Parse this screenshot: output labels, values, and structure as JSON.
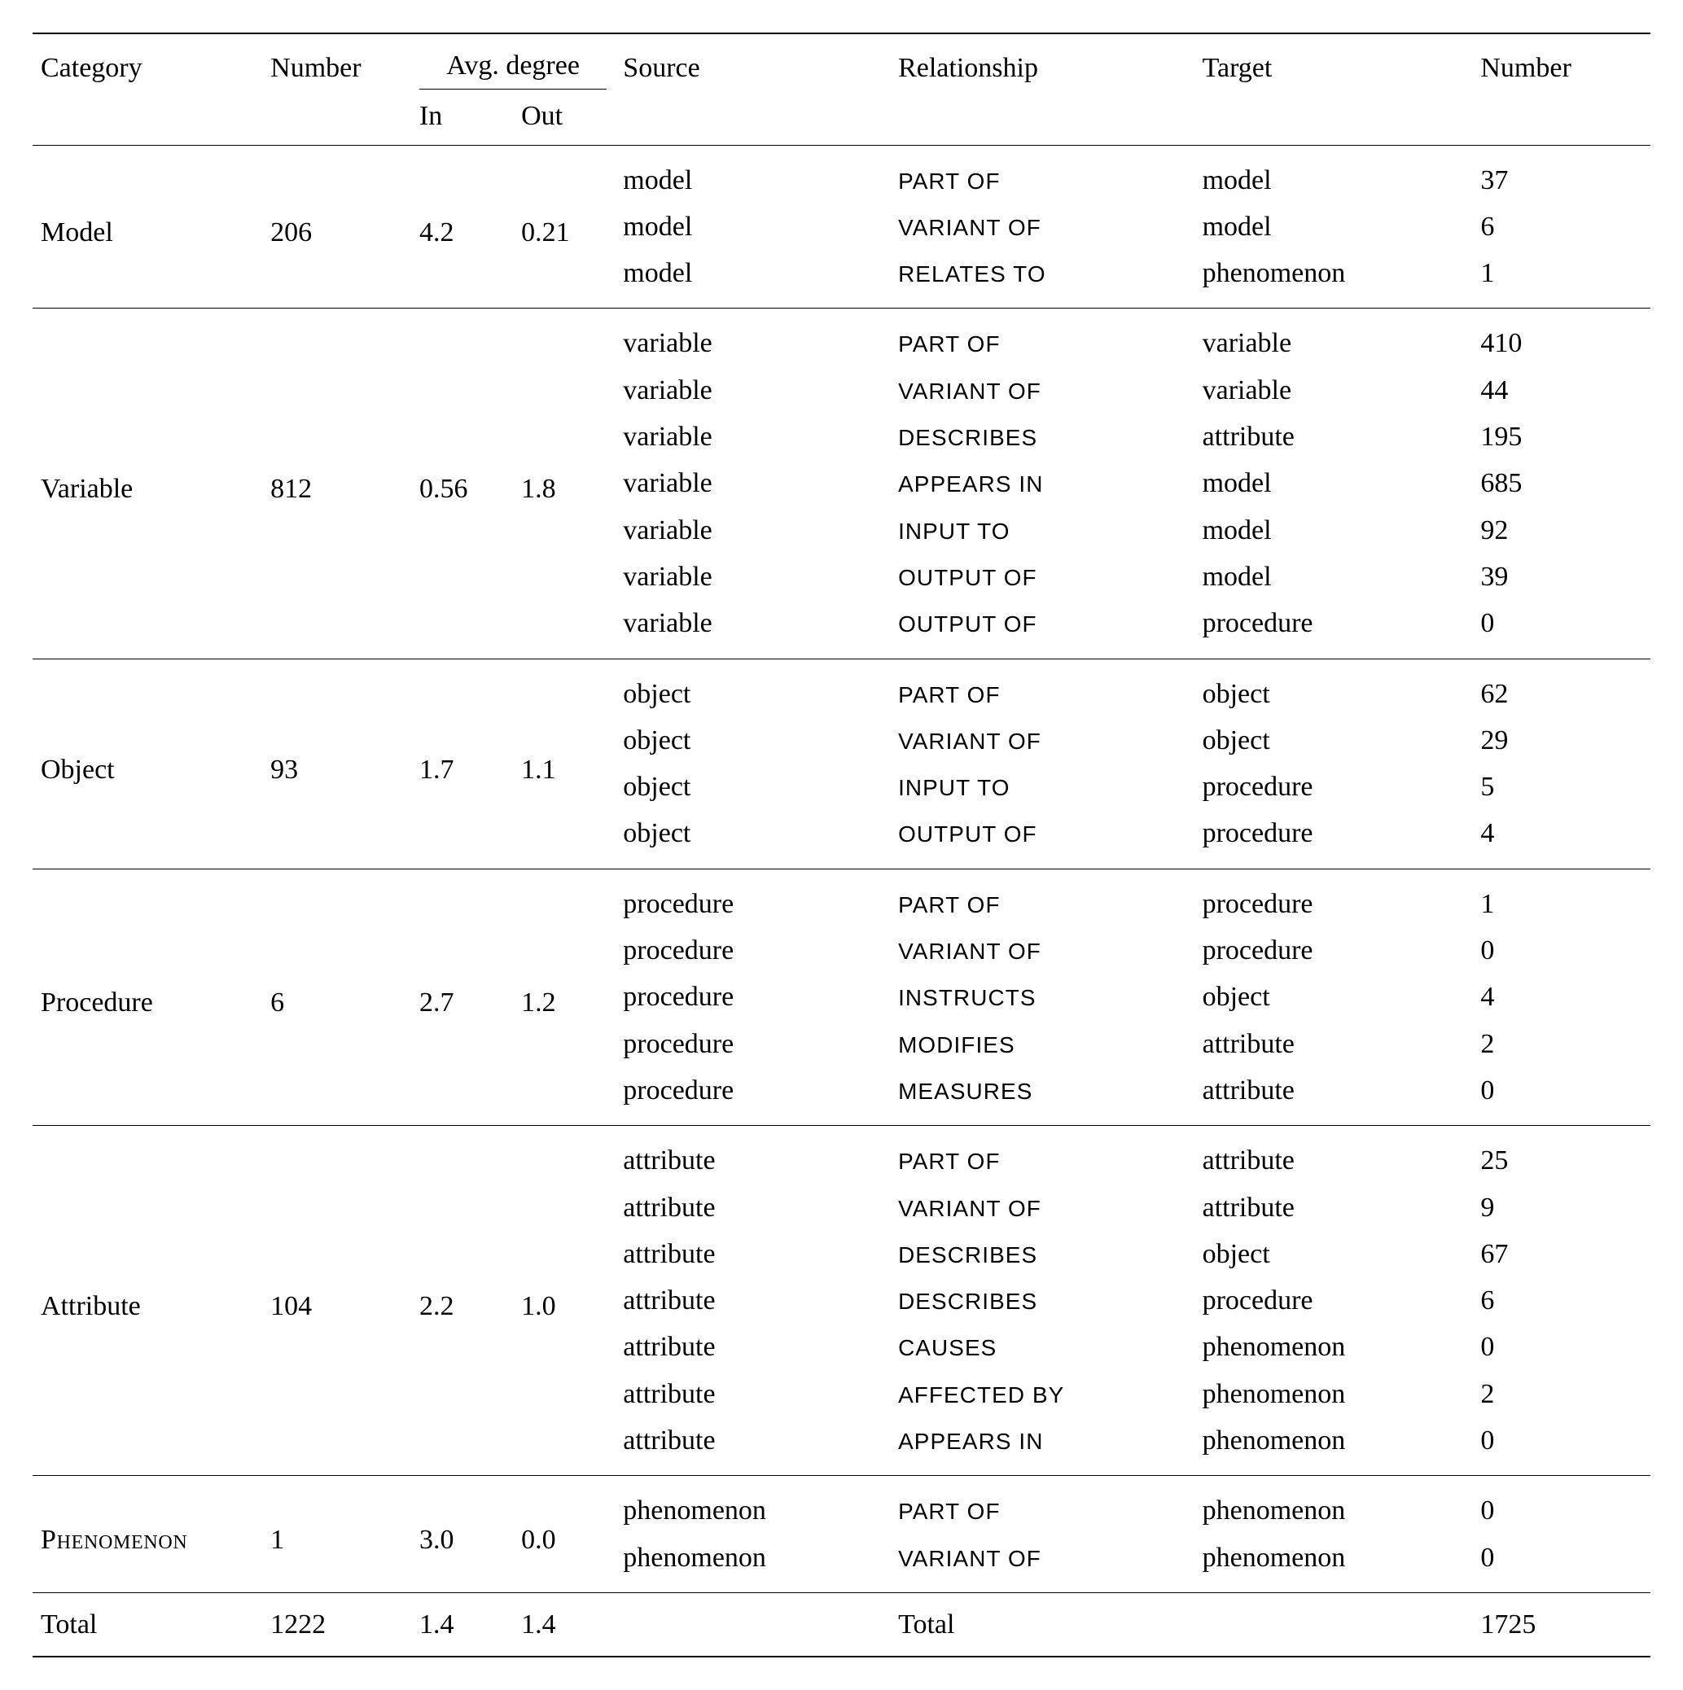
{
  "colors": {
    "text": "#000000",
    "background": "#ffffff",
    "rule": "#000000"
  },
  "typography": {
    "body_family": "Georgia serif",
    "body_size_pt": 25,
    "relationship_family": "Helvetica sans-serif",
    "relationship_size_scale": 0.82,
    "line_height": 1.45
  },
  "layout": {
    "column_widths_pct": {
      "category": 14.2,
      "number1": 9.2,
      "in": 6.3,
      "out": 6.3,
      "source": 17.0,
      "relationship": 18.8,
      "target": 17.2,
      "number2": 11.0
    }
  },
  "columns": {
    "category": "Category",
    "number": "Number",
    "avg_degree": "Avg. degree",
    "in": "In",
    "out": "Out",
    "source": "Source",
    "relationship": "Relationship",
    "target": "Target",
    "number2": "Number"
  },
  "groups": [
    {
      "category": "Model",
      "number": "206",
      "in": "4.2",
      "out": "0.21",
      "rows": [
        {
          "source": "model",
          "relationship": "PART OF",
          "target": "model",
          "number": "37"
        },
        {
          "source": "model",
          "relationship": "VARIANT OF",
          "target": "model",
          "number": "6"
        },
        {
          "source": "model",
          "relationship": "RELATES TO",
          "target": "phenomenon",
          "number": "1"
        }
      ]
    },
    {
      "category": "Variable",
      "number": "812",
      "in": "0.56",
      "out": "1.8",
      "rows": [
        {
          "source": "variable",
          "relationship": "PART OF",
          "target": "variable",
          "number": "410"
        },
        {
          "source": "variable",
          "relationship": "VARIANT OF",
          "target": "variable",
          "number": "44"
        },
        {
          "source": "variable",
          "relationship": "DESCRIBES",
          "target": "attribute",
          "number": "195"
        },
        {
          "source": "variable",
          "relationship": "APPEARS IN",
          "target": "model",
          "number": "685"
        },
        {
          "source": "variable",
          "relationship": "INPUT TO",
          "target": "model",
          "number": "92"
        },
        {
          "source": "variable",
          "relationship": "OUTPUT OF",
          "target": "model",
          "number": "39"
        },
        {
          "source": "variable",
          "relationship": "OUTPUT OF",
          "target": "procedure",
          "number": "0"
        }
      ]
    },
    {
      "category": "Object",
      "number": "93",
      "in": "1.7",
      "out": "1.1",
      "rows": [
        {
          "source": "object",
          "relationship": "PART OF",
          "target": "object",
          "number": "62"
        },
        {
          "source": "object",
          "relationship": "VARIANT OF",
          "target": "object",
          "number": "29"
        },
        {
          "source": "object",
          "relationship": "INPUT TO",
          "target": "procedure",
          "number": "5"
        },
        {
          "source": "object",
          "relationship": "OUTPUT OF",
          "target": "procedure",
          "number": "4"
        }
      ]
    },
    {
      "category": "Procedure",
      "number": "6",
      "in": "2.7",
      "out": "1.2",
      "rows": [
        {
          "source": "procedure",
          "relationship": "PART OF",
          "target": "procedure",
          "number": "1"
        },
        {
          "source": "procedure",
          "relationship": "VARIANT OF",
          "target": "procedure",
          "number": "0"
        },
        {
          "source": "procedure",
          "relationship": "INSTRUCTS",
          "target": "object",
          "number": "4"
        },
        {
          "source": "procedure",
          "relationship": "MODIFIES",
          "target": "attribute",
          "number": "2"
        },
        {
          "source": "procedure",
          "relationship": "MEASURES",
          "target": "attribute",
          "number": "0"
        }
      ]
    },
    {
      "category": "Attribute",
      "number": "104",
      "in": "2.2",
      "out": "1.0",
      "rows": [
        {
          "source": "attribute",
          "relationship": "PART OF",
          "target": "attribute",
          "number": "25"
        },
        {
          "source": "attribute",
          "relationship": "VARIANT OF",
          "target": "attribute",
          "number": "9"
        },
        {
          "source": "attribute",
          "relationship": "DESCRIBES",
          "target": "object",
          "number": "67"
        },
        {
          "source": "attribute",
          "relationship": "DESCRIBES",
          "target": "procedure",
          "number": "6"
        },
        {
          "source": "attribute",
          "relationship": "CAUSES",
          "target": "phenomenon",
          "number": "0"
        },
        {
          "source": "attribute",
          "relationship": "AFFECTED BY",
          "target": "phenomenon",
          "number": "2"
        },
        {
          "source": "attribute",
          "relationship": "APPEARS IN",
          "target": "phenomenon",
          "number": "0"
        }
      ]
    },
    {
      "category": "Phenomenon",
      "category_smallcaps": true,
      "number": "1",
      "in": "3.0",
      "out": "0.0",
      "rows": [
        {
          "source": "phenomenon",
          "relationship": "PART OF",
          "target": "phenomenon",
          "number": "0"
        },
        {
          "source": "phenomenon",
          "relationship": "VARIANT OF",
          "target": "phenomenon",
          "number": "0"
        }
      ]
    }
  ],
  "totals": {
    "label_left": "Total",
    "number_left": "1222",
    "in": "1.4",
    "out": "1.4",
    "label_right": "Total",
    "number_right": "1725"
  }
}
